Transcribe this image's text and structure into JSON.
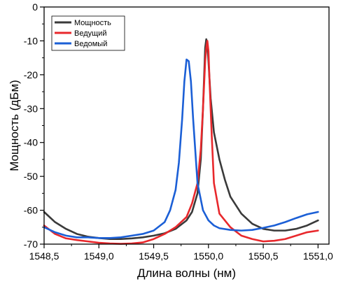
{
  "chart_data": {
    "type": "line",
    "xlabel": "Длина волны (нм)",
    "ylabel": "Мощность (дБм)",
    "xlim": [
      1548.5,
      1551.1
    ],
    "ylim": [
      -70,
      0
    ],
    "x_ticks": [
      1548.5,
      1549.0,
      1549.5,
      1550.0,
      1550.5,
      1551.0
    ],
    "x_tick_labels": [
      "1548,5",
      "1549,0",
      "1549,5",
      "1550,0",
      "1550,5",
      "1551,0"
    ],
    "y_ticks": [
      0,
      -10,
      -20,
      -30,
      -40,
      -50,
      -60,
      -70
    ],
    "y_tick_labels": [
      "0",
      "-10",
      "-20",
      "-30",
      "-40",
      "-50",
      "-60",
      "-70"
    ],
    "grid": false,
    "legend_position": "top-left",
    "series": [
      {
        "name": "Мощность",
        "color": "#3a3a3a",
        "x": [
          1548.5,
          1548.6,
          1548.7,
          1548.8,
          1548.9,
          1549.0,
          1549.1,
          1549.2,
          1549.3,
          1549.4,
          1549.5,
          1549.6,
          1549.7,
          1549.8,
          1549.85,
          1549.9,
          1549.93,
          1549.95,
          1549.97,
          1549.98,
          1549.99,
          1550.0,
          1550.02,
          1550.05,
          1550.1,
          1550.15,
          1550.2,
          1550.3,
          1550.4,
          1550.5,
          1550.6,
          1550.7,
          1550.8,
          1550.9,
          1551.0
        ],
        "y": [
          -60.5,
          -63.5,
          -65.5,
          -67,
          -67.8,
          -68.2,
          -68.5,
          -68.5,
          -68.3,
          -68,
          -67.5,
          -66.8,
          -65.5,
          -63,
          -60.5,
          -55,
          -45,
          -30,
          -12,
          -9.5,
          -11,
          -16,
          -27,
          -37,
          -45,
          -51,
          -56,
          -61,
          -64,
          -65.5,
          -66,
          -66,
          -65.5,
          -64.5,
          -63
        ]
      },
      {
        "name": "Ведущий",
        "color": "#e8282c",
        "x": [
          1548.5,
          1548.6,
          1548.7,
          1548.8,
          1548.9,
          1549.0,
          1549.1,
          1549.2,
          1549.3,
          1549.4,
          1549.5,
          1549.6,
          1549.7,
          1549.8,
          1549.85,
          1549.9,
          1549.93,
          1549.95,
          1549.97,
          1549.98,
          1549.99,
          1550.0,
          1550.01,
          1550.03,
          1550.05,
          1550.1,
          1550.2,
          1550.3,
          1550.4,
          1550.5,
          1550.6,
          1550.7,
          1550.8,
          1550.9,
          1551.0
        ],
        "y": [
          -64.5,
          -67,
          -68.3,
          -68.8,
          -69.2,
          -69.6,
          -69.8,
          -69.9,
          -69.8,
          -69.5,
          -68.5,
          -67,
          -65,
          -62,
          -58,
          -52,
          -42,
          -30,
          -16,
          -12,
          -10,
          -13,
          -22,
          -38,
          -52,
          -61,
          -65,
          -67.5,
          -68.5,
          -69.2,
          -69,
          -68.5,
          -67.5,
          -66.5,
          -66
        ]
      },
      {
        "name": "Ведомый",
        "color": "#1b5fd6",
        "x": [
          1548.5,
          1548.6,
          1548.7,
          1548.8,
          1548.9,
          1549.0,
          1549.1,
          1549.2,
          1549.3,
          1549.4,
          1549.5,
          1549.6,
          1549.65,
          1549.7,
          1549.73,
          1549.76,
          1549.78,
          1549.8,
          1549.82,
          1549.84,
          1549.86,
          1549.9,
          1549.95,
          1550.0,
          1550.05,
          1550.1,
          1550.2,
          1550.3,
          1550.4,
          1550.5,
          1550.6,
          1550.7,
          1550.8,
          1550.9,
          1551.0
        ],
        "y": [
          -65,
          -66.5,
          -67.5,
          -68,
          -68,
          -68.2,
          -68.2,
          -68,
          -67.5,
          -67,
          -66,
          -63.5,
          -60,
          -54,
          -46,
          -33,
          -22,
          -15.5,
          -16,
          -22,
          -33,
          -52,
          -60,
          -63,
          -64.5,
          -65.3,
          -65.8,
          -66,
          -65.8,
          -65.2,
          -64.5,
          -63.5,
          -62.3,
          -61.2,
          -60.5
        ]
      }
    ]
  }
}
